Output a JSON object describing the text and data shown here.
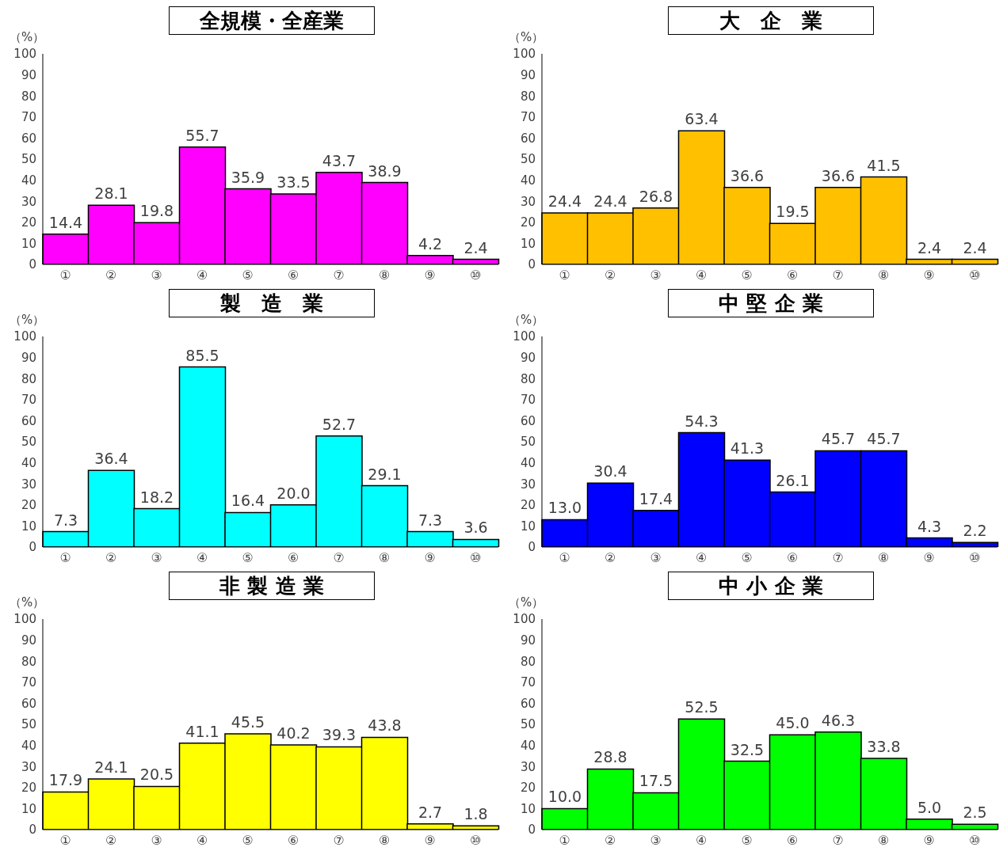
{
  "chart_data": [
    {
      "type": "bar",
      "title": "全規模・全産業",
      "ylabel": "（%）",
      "categories": [
        "①",
        "②",
        "③",
        "④",
        "⑤",
        "⑥",
        "⑦",
        "⑧",
        "⑨",
        "⑩"
      ],
      "values": [
        14.4,
        28.1,
        19.8,
        55.7,
        35.9,
        33.5,
        43.7,
        38.9,
        4.2,
        2.4
      ],
      "value_labels": [
        "14.4",
        "28.1",
        "19.8",
        "55.7",
        "35.9",
        "33.5",
        "43.7",
        "38.9",
        "4.2",
        "2.4"
      ],
      "color": "#ff00ff",
      "ylim": [
        0,
        100
      ],
      "yticks": [
        0,
        10,
        20,
        30,
        40,
        50,
        60,
        70,
        80,
        90,
        100
      ],
      "grid": false,
      "legend": false
    },
    {
      "type": "bar",
      "title": "大　企　業",
      "ylabel": "（%）",
      "categories": [
        "①",
        "②",
        "③",
        "④",
        "⑤",
        "⑥",
        "⑦",
        "⑧",
        "⑨",
        "⑩"
      ],
      "values": [
        24.4,
        24.4,
        26.8,
        63.4,
        36.6,
        19.5,
        36.6,
        41.5,
        2.4,
        2.4
      ],
      "value_labels": [
        "24.4",
        "24.4",
        "26.8",
        "63.4",
        "36.6",
        "19.5",
        "36.6",
        "41.5",
        "2.4",
        "2.4"
      ],
      "color": "#ffc000",
      "ylim": [
        0,
        100
      ],
      "yticks": [
        0,
        10,
        20,
        30,
        40,
        50,
        60,
        70,
        80,
        90,
        100
      ],
      "grid": false,
      "legend": false
    },
    {
      "type": "bar",
      "title": "製　造　業",
      "ylabel": "（%）",
      "categories": [
        "①",
        "②",
        "③",
        "④",
        "⑤",
        "⑥",
        "⑦",
        "⑧",
        "⑨",
        "⑩"
      ],
      "values": [
        7.3,
        36.4,
        18.2,
        85.5,
        16.4,
        20,
        52.7,
        29.1,
        7.3,
        3.6
      ],
      "value_labels": [
        "7.3",
        "36.4",
        "18.2",
        "85.5",
        "16.4",
        "20.0",
        "52.7",
        "29.1",
        "7.3",
        "3.6"
      ],
      "color": "#00ffff",
      "ylim": [
        0,
        100
      ],
      "yticks": [
        0,
        10,
        20,
        30,
        40,
        50,
        60,
        70,
        80,
        90,
        100
      ],
      "grid": false,
      "legend": false
    },
    {
      "type": "bar",
      "title": "中 堅 企 業",
      "ylabel": "（%）",
      "categories": [
        "①",
        "②",
        "③",
        "④",
        "⑤",
        "⑥",
        "⑦",
        "⑧",
        "⑨",
        "⑩"
      ],
      "values": [
        13,
        30.4,
        17.4,
        54.3,
        41.3,
        26.1,
        45.7,
        45.7,
        4.3,
        2.2
      ],
      "value_labels": [
        "13.0",
        "30.4",
        "17.4",
        "54.3",
        "41.3",
        "26.1",
        "45.7",
        "45.7",
        "4.3",
        "2.2"
      ],
      "color": "#0000ff",
      "ylim": [
        0,
        100
      ],
      "yticks": [
        0,
        10,
        20,
        30,
        40,
        50,
        60,
        70,
        80,
        90,
        100
      ],
      "grid": false,
      "legend": false
    },
    {
      "type": "bar",
      "title": "非 製 造 業",
      "ylabel": "（%）",
      "categories": [
        "①",
        "②",
        "③",
        "④",
        "⑤",
        "⑥",
        "⑦",
        "⑧",
        "⑨",
        "⑩"
      ],
      "values": [
        17.9,
        24.1,
        20.5,
        41.1,
        45.5,
        40.2,
        39.3,
        43.8,
        2.7,
        1.8
      ],
      "value_labels": [
        "17.9",
        "24.1",
        "20.5",
        "41.1",
        "45.5",
        "40.2",
        "39.3",
        "43.8",
        "2.7",
        "1.8"
      ],
      "color": "#ffff00",
      "ylim": [
        0,
        100
      ],
      "yticks": [
        0,
        10,
        20,
        30,
        40,
        50,
        60,
        70,
        80,
        90,
        100
      ],
      "grid": false,
      "legend": false
    },
    {
      "type": "bar",
      "title": "中 小 企 業",
      "ylabel": "（%）",
      "categories": [
        "①",
        "②",
        "③",
        "④",
        "⑤",
        "⑥",
        "⑦",
        "⑧",
        "⑨",
        "⑩"
      ],
      "values": [
        10,
        28.8,
        17.5,
        52.5,
        32.5,
        45,
        46.3,
        33.8,
        5,
        2.5
      ],
      "value_labels": [
        "10.0",
        "28.8",
        "17.5",
        "52.5",
        "32.5",
        "45.0",
        "46.3",
        "33.8",
        "5.0",
        "2.5"
      ],
      "color": "#00ff00",
      "ylim": [
        0,
        100
      ],
      "yticks": [
        0,
        10,
        20,
        30,
        40,
        50,
        60,
        70,
        80,
        90,
        100
      ],
      "grid": false,
      "legend": false
    }
  ]
}
